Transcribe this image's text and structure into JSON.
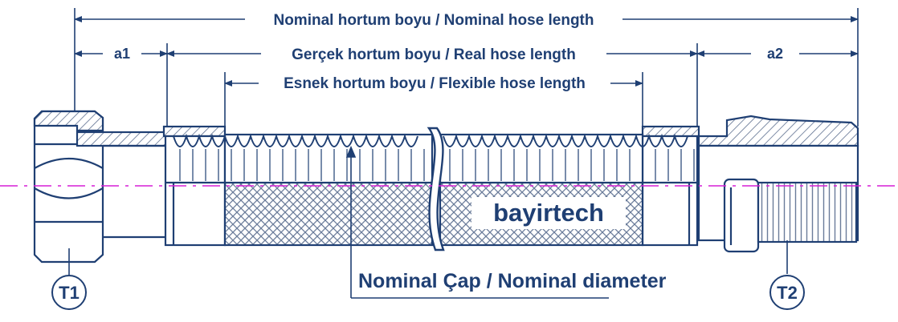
{
  "labels": {
    "nominal_length": "Nominal hortum boyu / Nominal hose length",
    "real_length": "Gerçek hortum boyu / Real hose length",
    "flexible_length": "Esnek hortum boyu / Flexible hose length",
    "a1": "a1",
    "a2": "a2",
    "nominal_diameter": "Nominal Çap / Nominal diameter",
    "brand": "bayirtech",
    "t1": "T1",
    "t2": "T2"
  },
  "colors": {
    "outline": "#1f3f73",
    "hatch": "#6a7c9a",
    "centerline": "#d61fd6",
    "background": "#ffffff"
  }
}
